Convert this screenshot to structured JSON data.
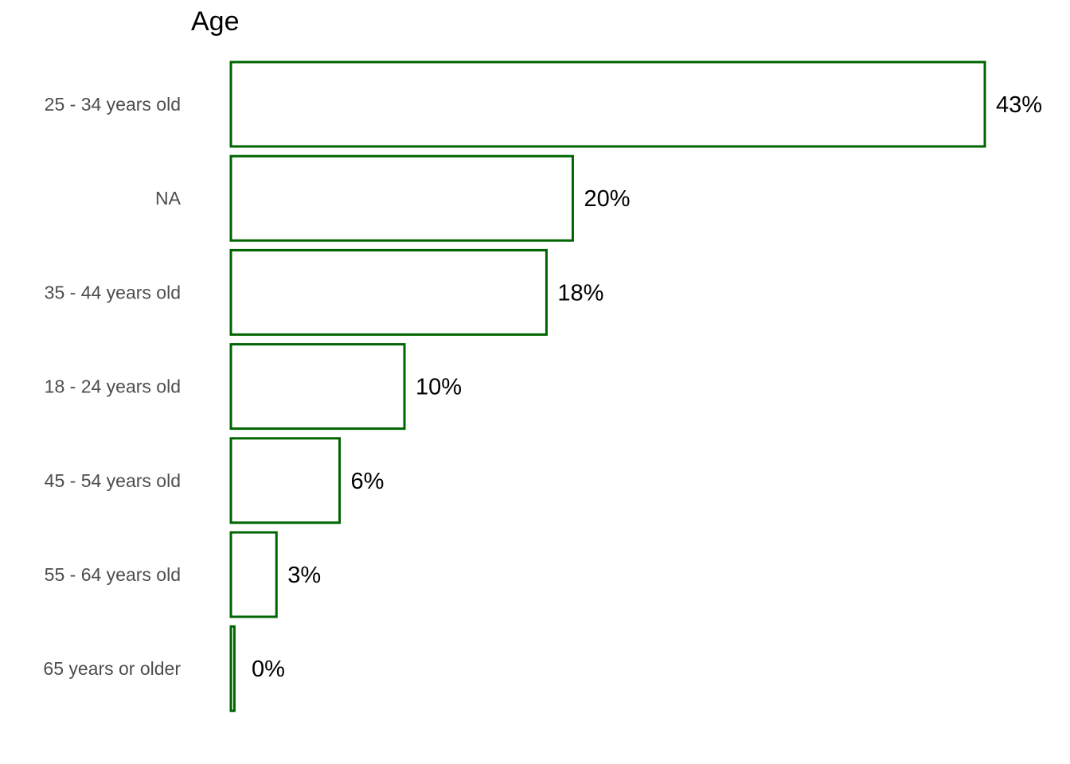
{
  "chart_data": {
    "type": "bar",
    "orientation": "horizontal",
    "title": "Age",
    "xlabel": "",
    "ylabel": "",
    "categories": [
      "25 - 34 years old",
      "NA",
      "35 - 44 years old",
      "18 - 24 years old",
      "45 - 54 years old",
      "55 - 64 years old",
      "65 years or older"
    ],
    "values": [
      43.0,
      19.5,
      18.0,
      9.9,
      6.2,
      2.6,
      0.2
    ],
    "value_labels": [
      "43%",
      "20%",
      "18%",
      "10%",
      "6%",
      "3%",
      "0%"
    ],
    "xlim": [
      0,
      43
    ],
    "grid": false,
    "legend": "none",
    "colors": {
      "bar_fill": "#ffffff",
      "bar_stroke": "#006400",
      "category_text": "#4d4d4d",
      "value_text": "#000000"
    }
  }
}
